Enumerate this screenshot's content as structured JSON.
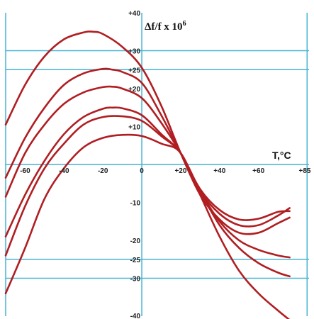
{
  "chart_data": {
    "type": "line",
    "title": "Δf/f x 10",
    "title_superscript": "6",
    "xlabel": "T,°C",
    "ylabel": "",
    "xlim": [
      -70,
      86
    ],
    "ylim": [
      -40,
      40
    ],
    "x_ticks": [
      {
        "value": -60,
        "label": "-60"
      },
      {
        "value": -40,
        "label": "-40"
      },
      {
        "value": -20,
        "label": "-20"
      },
      {
        "value": 0,
        "label": "0"
      },
      {
        "value": 20,
        "label": "+20"
      },
      {
        "value": 40,
        "label": "+40"
      },
      {
        "value": 60,
        "label": "+60"
      },
      {
        "value": 85,
        "label": "+85"
      }
    ],
    "y_ticks": [
      {
        "value": 40,
        "label": "+40"
      },
      {
        "value": 30,
        "label": "+30"
      },
      {
        "value": 25,
        "label": "+25"
      },
      {
        "value": 20,
        "label": "+20"
      },
      {
        "value": 10,
        "label": "+10"
      },
      {
        "value": -10,
        "label": "-10"
      },
      {
        "value": -20,
        "label": "-20"
      },
      {
        "value": -25,
        "label": "-25"
      },
      {
        "value": -30,
        "label": "-30"
      },
      {
        "value": -40,
        "label": "-40"
      }
    ],
    "gridlines_y": [
      30,
      25,
      -25,
      -30
    ],
    "gridlines_x": [
      -70,
      0,
      85
    ],
    "grid": true,
    "colors": {
      "series": "#b01e22",
      "grid": "#46b4d2",
      "text": "#222222"
    },
    "series": [
      {
        "values_x": [
          -70,
          -60,
          -50,
          -40,
          -30,
          -25,
          -20,
          -10,
          0,
          10,
          20,
          30,
          40,
          50,
          60,
          70,
          76
        ],
        "values_y": [
          10.5,
          21,
          28.5,
          33,
          34.8,
          35,
          34.4,
          31,
          25.5,
          15.5,
          3,
          -8,
          -14.5,
          -18,
          -18,
          -15.5,
          -14
        ]
      },
      {
        "values_x": [
          -70,
          -60,
          -50,
          -40,
          -30,
          -20,
          -15,
          -10,
          0,
          10,
          20,
          30,
          40,
          50,
          60,
          70,
          76
        ],
        "values_y": [
          -3.5,
          7,
          15,
          21,
          24,
          25.2,
          25,
          24.4,
          21.5,
          13,
          3,
          -7,
          -13,
          -16,
          -16,
          -13.5,
          -11.5
        ]
      },
      {
        "values_x": [
          -70,
          -60,
          -50,
          -40,
          -30,
          -20,
          -15,
          -10,
          0,
          10,
          20,
          30,
          40,
          50,
          60,
          70,
          76
        ],
        "values_y": [
          -8.5,
          3,
          10.5,
          16,
          19,
          20.4,
          20.5,
          20,
          17.5,
          11,
          3,
          -6.5,
          -12,
          -14.5,
          -14.3,
          -12.5,
          -12.3
        ]
      },
      {
        "values_x": [
          -70,
          -60,
          -50,
          -40,
          -30,
          -20,
          -15,
          -10,
          0,
          10,
          20,
          30,
          40,
          50,
          60,
          70,
          76
        ],
        "values_y": [
          -19,
          -8,
          1,
          8,
          12.5,
          14.7,
          15,
          14.8,
          13,
          8,
          3,
          -7,
          -15,
          -20,
          -22.5,
          -24,
          -24.5
        ]
      },
      {
        "values_x": [
          -70,
          -60,
          -50,
          -40,
          -30,
          -20,
          -10,
          0,
          10,
          20,
          30,
          40,
          50,
          60,
          70,
          76
        ],
        "values_y": [
          -24,
          -11,
          -1,
          5.5,
          10.5,
          12.5,
          12.7,
          11.5,
          7.5,
          3,
          -7,
          -16,
          -22,
          -26,
          -28.5,
          -29.5
        ]
      },
      {
        "values_x": [
          -70,
          -60,
          -50,
          -40,
          -30,
          -20,
          -10,
          0,
          10,
          20,
          30,
          40,
          50,
          60,
          70,
          76
        ],
        "values_y": [
          -34,
          -22,
          -9,
          -1,
          4.5,
          7,
          7.8,
          7.5,
          5.5,
          3,
          -8,
          -19,
          -28,
          -34,
          -38.5,
          -41
        ]
      }
    ]
  }
}
